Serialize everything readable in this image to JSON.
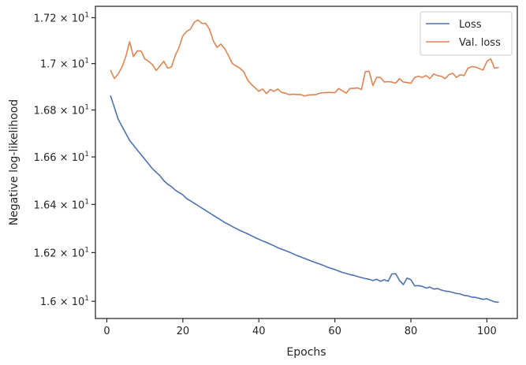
{
  "chart_data": {
    "type": "line",
    "title": "",
    "xlabel": "Epochs",
    "ylabel": "Negative log-likelihood",
    "xlim": [
      -3,
      108
    ],
    "ylim": [
      15.93,
      17.25
    ],
    "y_scale": "log",
    "grid": false,
    "legend_position": "top-right",
    "x_ticks": [
      0,
      20,
      40,
      60,
      80,
      100
    ],
    "x_tick_labels": [
      "0",
      "20",
      "40",
      "60",
      "80",
      "100"
    ],
    "y_ticks": [
      16.0,
      16.2,
      16.4,
      16.6,
      16.8,
      17.0,
      17.2
    ],
    "y_tick_labels": [
      {
        "mant": "1.6",
        "exp": "1"
      },
      {
        "mant": "1.62",
        "exp": "1"
      },
      {
        "mant": "1.64",
        "exp": "1"
      },
      {
        "mant": "1.66",
        "exp": "1"
      },
      {
        "mant": "1.68",
        "exp": "1"
      },
      {
        "mant": "1.7",
        "exp": "1"
      },
      {
        "mant": "1.72",
        "exp": "1"
      }
    ],
    "series": [
      {
        "name": "Loss",
        "color": "#4c72b0",
        "x": [
          1,
          2,
          3,
          4,
          5,
          6,
          7,
          8,
          9,
          10,
          11,
          12,
          13,
          14,
          15,
          16,
          17,
          18,
          19,
          20,
          21,
          22,
          23,
          24,
          25,
          26,
          27,
          28,
          29,
          30,
          31,
          32,
          33,
          34,
          35,
          36,
          37,
          38,
          39,
          40,
          41,
          42,
          43,
          44,
          45,
          46,
          47,
          48,
          49,
          50,
          51,
          52,
          53,
          54,
          55,
          56,
          57,
          58,
          59,
          60,
          61,
          62,
          63,
          64,
          65,
          66,
          67,
          68,
          69,
          70,
          71,
          72,
          73,
          74,
          75,
          76,
          77,
          78,
          79,
          80,
          81,
          82,
          83,
          84,
          85,
          86,
          87,
          88,
          89,
          90,
          91,
          92,
          93,
          94,
          95,
          96,
          97,
          98,
          99,
          100,
          101,
          102,
          103
        ],
        "values": [
          16.86,
          16.81,
          16.76,
          16.73,
          16.7,
          16.67,
          16.65,
          16.63,
          16.61,
          16.59,
          16.57,
          16.55,
          16.535,
          16.52,
          16.5,
          16.485,
          16.475,
          16.46,
          16.45,
          16.44,
          16.425,
          16.415,
          16.405,
          16.395,
          16.385,
          16.375,
          16.365,
          16.355,
          16.345,
          16.335,
          16.325,
          16.317,
          16.308,
          16.3,
          16.292,
          16.285,
          16.278,
          16.27,
          16.262,
          16.255,
          16.248,
          16.242,
          16.235,
          16.228,
          16.22,
          16.214,
          16.208,
          16.202,
          16.195,
          16.188,
          16.182,
          16.176,
          16.17,
          16.164,
          16.158,
          16.153,
          16.147,
          16.14,
          16.135,
          16.13,
          16.124,
          16.118,
          16.114,
          16.109,
          16.106,
          16.101,
          16.097,
          16.093,
          16.09,
          16.085,
          16.09,
          16.082,
          16.088,
          16.082,
          16.112,
          16.113,
          16.085,
          16.068,
          16.095,
          16.088,
          16.063,
          16.064,
          16.061,
          16.054,
          16.058,
          16.05,
          16.052,
          16.046,
          16.042,
          16.04,
          16.036,
          16.032,
          16.03,
          16.024,
          16.022,
          16.017,
          16.016,
          16.012,
          16.008,
          16.01,
          16.004,
          15.998,
          15.996
        ]
      },
      {
        "name": "Val. loss",
        "color": "#dd8452",
        "x": [
          1,
          2,
          3,
          4,
          5,
          6,
          7,
          8,
          9,
          10,
          11,
          12,
          13,
          14,
          15,
          16,
          17,
          18,
          19,
          20,
          21,
          22,
          23,
          24,
          25,
          26,
          27,
          28,
          29,
          30,
          31,
          32,
          33,
          34,
          35,
          36,
          37,
          38,
          39,
          40,
          41,
          42,
          43,
          44,
          45,
          46,
          47,
          48,
          49,
          50,
          51,
          52,
          53,
          54,
          55,
          56,
          57,
          58,
          59,
          60,
          61,
          62,
          63,
          64,
          65,
          66,
          67,
          68,
          69,
          70,
          71,
          72,
          73,
          74,
          75,
          76,
          77,
          78,
          79,
          80,
          81,
          82,
          83,
          84,
          85,
          86,
          87,
          88,
          89,
          90,
          91,
          92,
          93,
          94,
          95,
          96,
          97,
          98,
          99,
          100,
          101,
          102,
          103
        ],
        "values": [
          16.97,
          16.935,
          16.955,
          16.985,
          17.03,
          17.095,
          17.03,
          17.055,
          17.055,
          17.02,
          17.01,
          16.995,
          16.97,
          16.99,
          17.01,
          16.98,
          16.985,
          17.035,
          17.07,
          17.12,
          17.14,
          17.15,
          17.18,
          17.19,
          17.175,
          17.175,
          17.15,
          17.1,
          17.07,
          17.085,
          17.065,
          17.035,
          17.0,
          16.99,
          16.98,
          16.965,
          16.93,
          16.91,
          16.895,
          16.88,
          16.89,
          16.87,
          16.888,
          16.88,
          16.89,
          16.875,
          16.872,
          16.866,
          16.868,
          16.866,
          16.866,
          16.86,
          16.864,
          16.865,
          16.866,
          16.872,
          16.874,
          16.875,
          16.875,
          16.874,
          16.892,
          16.882,
          16.872,
          16.893,
          16.893,
          16.895,
          16.888,
          16.965,
          16.967,
          16.905,
          16.94,
          16.94,
          16.92,
          16.922,
          16.92,
          16.915,
          16.935,
          16.92,
          16.918,
          16.915,
          16.94,
          16.945,
          16.94,
          16.948,
          16.935,
          16.955,
          16.948,
          16.945,
          16.935,
          16.952,
          16.958,
          16.94,
          16.952,
          16.948,
          16.98,
          16.987,
          16.985,
          16.978,
          16.972,
          17.01,
          17.02,
          16.98,
          16.983
        ]
      }
    ]
  }
}
